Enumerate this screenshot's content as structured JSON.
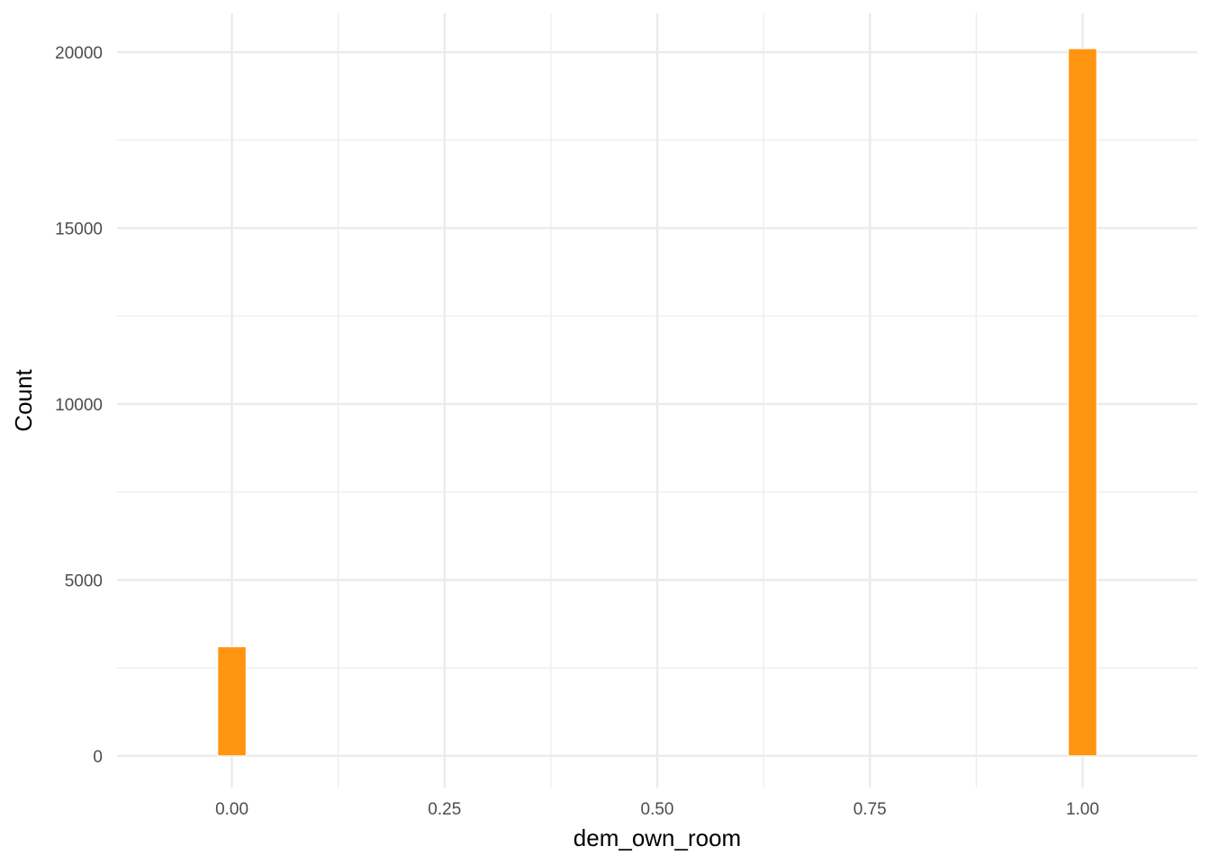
{
  "chart_data": {
    "type": "bar",
    "title": "",
    "xlabel": "dem_own_room",
    "ylabel": "Count",
    "x": [
      0.0,
      1.0
    ],
    "values": [
      3100,
      20100
    ],
    "bar_width": 0.0333,
    "xlim": [
      -0.135,
      1.135
    ],
    "ylim": [
      -900,
      21100
    ],
    "x_ticks": [
      0.0,
      0.25,
      0.5,
      0.75,
      1.0
    ],
    "x_tick_labels": [
      "0.00",
      "0.25",
      "0.50",
      "0.75",
      "1.00"
    ],
    "y_ticks": [
      0,
      5000,
      10000,
      15000,
      20000
    ],
    "y_tick_labels": [
      "0",
      "5000",
      "10000",
      "15000",
      "20000"
    ],
    "grid": true,
    "bar_color": "#FF9410",
    "bar_edge_color": "#ffffff"
  }
}
